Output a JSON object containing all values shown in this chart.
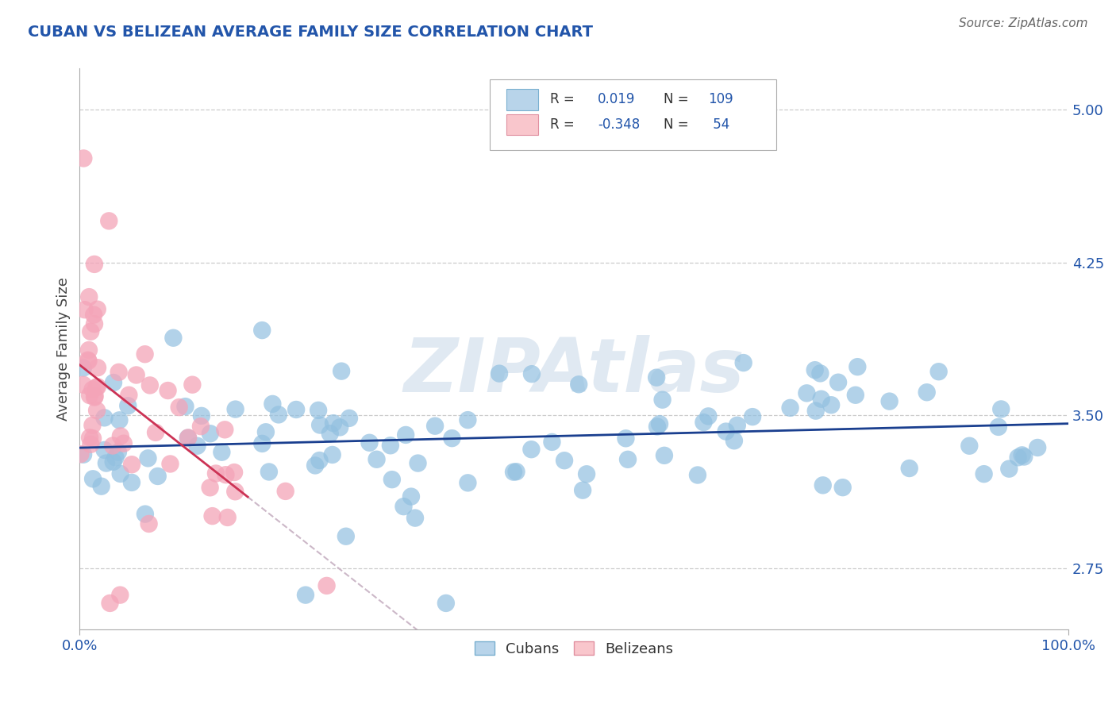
{
  "title": "CUBAN VS BELIZEAN AVERAGE FAMILY SIZE CORRELATION CHART",
  "source_text": "Source: ZipAtlas.com",
  "ylabel": "Average Family Size",
  "yticks": [
    2.75,
    3.5,
    4.25,
    5.0
  ],
  "xlim": [
    0.0,
    100.0
  ],
  "ylim": [
    2.45,
    5.2
  ],
  "cubans_R": 0.019,
  "cubans_N": 109,
  "belizeans_R": -0.348,
  "belizeans_N": 54,
  "blue_scatter_color": "#92c0e0",
  "pink_scatter_color": "#f4a4b8",
  "blue_legend_fill": "#b8d4ea",
  "pink_legend_fill": "#f9c6cc",
  "blue_line_color": "#1a3f8f",
  "pink_line_color": "#cc3355",
  "pink_dash_color": "#ccb8c8",
  "title_color": "#2255aa",
  "tick_color": "#2255aa",
  "legend_R_color": "#2255aa",
  "legend_text_color": "#333333",
  "background_color": "#ffffff",
  "grid_color": "#cccccc",
  "watermark": "ZIPAtlas"
}
